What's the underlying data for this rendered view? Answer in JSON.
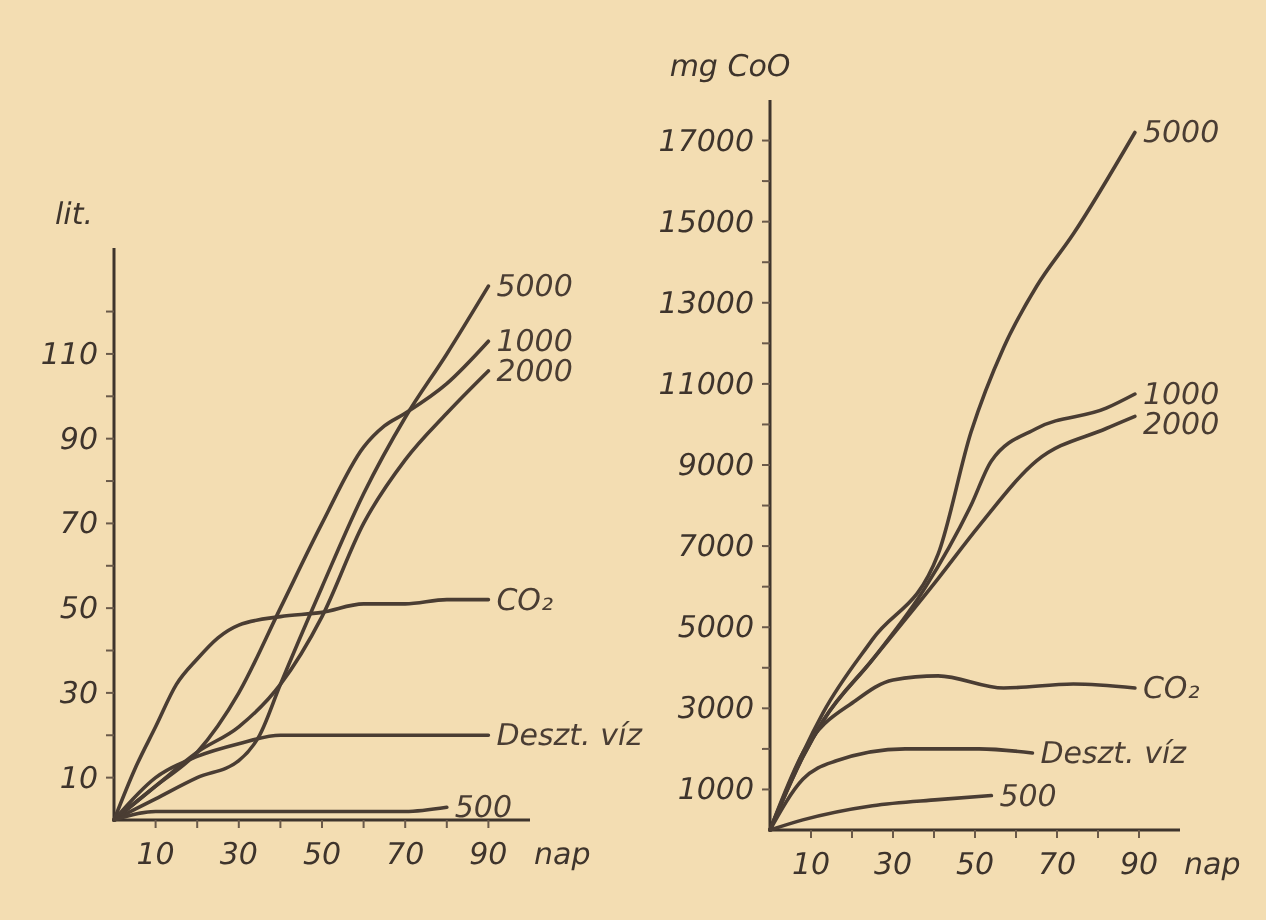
{
  "chart_data": [
    {
      "type": "line",
      "xlabel": "nap",
      "ylabel": "lit.",
      "xlim": [
        0,
        100
      ],
      "ylim": [
        0,
        135
      ],
      "xticks": [
        10,
        {
          "value": 20,
          "label": null
        },
        30,
        {
          "value": 40,
          "label": null
        },
        50,
        {
          "value": 60,
          "label": null
        },
        70,
        {
          "value": 80,
          "label": null
        },
        90
      ],
      "yticks": [
        10,
        {
          "value": 20,
          "label": null
        },
        30,
        {
          "value": 40,
          "label": null
        },
        50,
        {
          "value": 60,
          "label": null
        },
        70,
        {
          "value": 80,
          "label": null
        },
        90,
        {
          "value": 100,
          "label": null
        },
        110,
        {
          "value": 120,
          "label": null
        }
      ],
      "grid": false,
      "marker": "none",
      "line_style": "solid",
      "series": [
        {
          "name": "5000",
          "color": "#4a3d33",
          "x": [
            0,
            10,
            20,
            30,
            35,
            40,
            50,
            60,
            70,
            80,
            90
          ],
          "values": [
            0,
            5,
            10,
            14,
            20,
            32,
            55,
            77,
            95,
            110,
            126
          ]
        },
        {
          "name": "1000",
          "color": "#4a3d33",
          "x": [
            0,
            10,
            20,
            30,
            40,
            50,
            60,
            65,
            70,
            80,
            90
          ],
          "values": [
            0,
            8,
            16,
            30,
            50,
            70,
            88,
            93,
            96,
            103,
            113
          ]
        },
        {
          "name": "2000",
          "color": "#4a3d33",
          "x": [
            0,
            10,
            20,
            30,
            40,
            50,
            60,
            70,
            80,
            90
          ],
          "values": [
            0,
            8,
            16,
            22,
            32,
            48,
            70,
            85,
            96,
            106
          ]
        },
        {
          "name": "CO₂",
          "color": "#4a3d33",
          "x": [
            0,
            5,
            10,
            15,
            20,
            25,
            30,
            40,
            50,
            60,
            70,
            80,
            90
          ],
          "values": [
            0,
            12,
            22,
            32,
            38,
            43,
            46,
            48,
            49,
            51,
            51,
            52,
            52
          ]
        },
        {
          "name": "Deszt. víz",
          "color": "#4a3d33",
          "x": [
            0,
            10,
            20,
            30,
            40,
            50,
            70,
            90
          ],
          "values": [
            0,
            10,
            15,
            18,
            20,
            20,
            20,
            20
          ]
        },
        {
          "name": "500",
          "color": "#4a3d33",
          "x": [
            0,
            10,
            30,
            50,
            70,
            80
          ],
          "values": [
            0,
            2,
            2,
            2,
            2,
            3
          ]
        }
      ]
    },
    {
      "type": "line",
      "xlabel": "nap",
      "ylabel": "mg CoO",
      "xlim": [
        0,
        100
      ],
      "ylim": [
        0,
        18000
      ],
      "xticks": [
        10,
        {
          "value": 20,
          "label": null
        },
        30,
        {
          "value": 40,
          "label": null
        },
        50,
        {
          "value": 60,
          "label": null
        },
        70,
        {
          "value": 80,
          "label": null
        },
        90
      ],
      "yticks": [
        1000,
        {
          "value": 2000,
          "label": null
        },
        3000,
        {
          "value": 4000,
          "label": null
        },
        5000,
        {
          "value": 6000,
          "label": null
        },
        7000,
        {
          "value": 8000,
          "label": null
        },
        9000,
        {
          "value": 10000,
          "label": null
        },
        11000,
        {
          "value": 12000,
          "label": null
        },
        13000,
        {
          "value": 14000,
          "label": null
        },
        15000,
        {
          "value": 16000,
          "label": null
        },
        17000
      ],
      "grid": false,
      "marker": "none",
      "line_style": "solid",
      "series": [
        {
          "name": "5000",
          "color": "#4a3d33",
          "x": [
            0,
            8,
            13,
            25,
            41,
            49,
            57,
            65,
            74,
            89
          ],
          "values": [
            0,
            1900,
            2900,
            4700,
            6800,
            9800,
            11900,
            13400,
            14700,
            17200
          ]
        },
        {
          "name": "1000",
          "color": "#4a3d33",
          "x": [
            0,
            8,
            13,
            25,
            38,
            49,
            54,
            65,
            82,
            89
          ],
          "values": [
            0,
            1800,
            2700,
            4200,
            6000,
            8000,
            9100,
            9900,
            10400,
            10750
          ]
        },
        {
          "name": "2000",
          "color": "#4a3d33",
          "x": [
            0,
            8,
            13,
            25,
            41,
            51,
            65,
            82,
            89
          ],
          "values": [
            0,
            1800,
            2700,
            4200,
            6200,
            7500,
            9100,
            9900,
            10200
          ]
        },
        {
          "name": "CO₂",
          "color": "#4a3d33",
          "x": [
            0,
            8,
            21,
            30,
            41,
            57,
            74,
            89
          ],
          "values": [
            0,
            1900,
            3200,
            3700,
            3800,
            3500,
            3600,
            3500
          ]
        },
        {
          "name": "Deszt. víz",
          "color": "#4a3d33",
          "x": [
            0,
            8,
            16,
            33,
            51,
            64
          ],
          "values": [
            0,
            1250,
            1700,
            2000,
            2000,
            1900
          ]
        },
        {
          "name": "500",
          "color": "#4a3d33",
          "x": [
            0,
            8,
            25,
            41,
            54
          ],
          "values": [
            0,
            250,
            600,
            750,
            850
          ]
        }
      ]
    }
  ]
}
